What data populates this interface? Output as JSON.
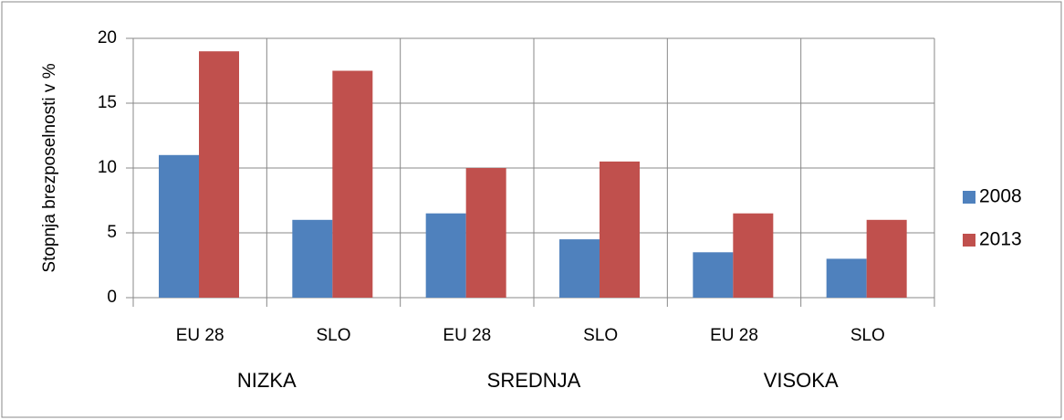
{
  "chart_data": {
    "type": "bar",
    "y_label": "Stopnja brezposelnosti v %",
    "categories": [
      "EU 28",
      "SLO",
      "EU 28",
      "SLO",
      "EU 28",
      "SLO"
    ],
    "groups": [
      "NIZKA",
      "SREDNJA",
      "VISOKA"
    ],
    "series": [
      {
        "name": "2008",
        "color": "#4f81bd",
        "values": [
          11,
          6,
          6.5,
          4.5,
          3.5,
          3
        ]
      },
      {
        "name": "2013",
        "color": "#c0504d",
        "values": [
          19,
          17.5,
          10,
          10.5,
          6.5,
          6
        ]
      }
    ],
    "ylim": [
      0,
      20
    ],
    "yticks": [
      0,
      5,
      10,
      15,
      20
    ],
    "grid": true,
    "legend": "right"
  }
}
